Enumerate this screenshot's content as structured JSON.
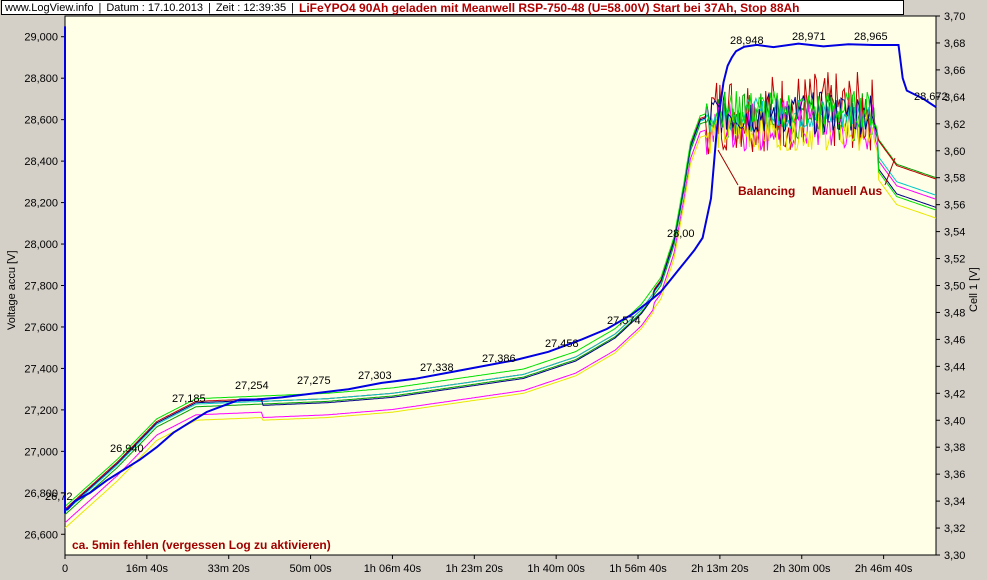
{
  "header": {
    "site": "www.LogView.info",
    "datum": "Datum : 17.10.2013",
    "zeit": "Zeit : 12:39:35",
    "title": "LiFeYPO4 90Ah geladen mit Meanwell RSP-750-48 (U=58.00V) Start bei 37Ah, Stop 88Ah"
  },
  "chart_data": {
    "type": "line",
    "ylabel_left": "Voltage accu [V]",
    "ylabel_right": "Cell 1 [V]",
    "ylim_left": [
      26.5,
      29.1
    ],
    "ylim_right": [
      3.3,
      3.7
    ],
    "y_ticks_left": [
      "26,600",
      "26,800",
      "27,000",
      "27,200",
      "27,400",
      "27,600",
      "27,800",
      "28,000",
      "28,200",
      "28,400",
      "28,600",
      "28,800",
      "29,000"
    ],
    "y_ticks_right": [
      "3,30",
      "3,32",
      "3,34",
      "3,36",
      "3,38",
      "3,40",
      "3,42",
      "3,44",
      "3,46",
      "3,48",
      "3,50",
      "3,52",
      "3,54",
      "3,56",
      "3,58",
      "3,60",
      "3,62",
      "3,64",
      "3,66",
      "3,68",
      "3,70"
    ],
    "x_ticks": [
      "0",
      "16m 40s",
      "33m 20s",
      "50m 00s",
      "1h 06m 40s",
      "1h 23m 20s",
      "1h 40m 00s",
      "1h 56m 40s",
      "2h 13m 20s",
      "2h 30m 00s",
      "2h 46m 40s"
    ],
    "x_seconds_ticks": [
      0,
      1000,
      2000,
      3000,
      4000,
      5000,
      6000,
      7000,
      8000,
      9000,
      10000
    ],
    "x_max_seconds": 10500,
    "voltage_series": {
      "name": "Voltage accu",
      "color": "#0000e0",
      "x": [
        0,
        30,
        120,
        300,
        500,
        700,
        900,
        1100,
        1300,
        1500,
        1700,
        1900,
        2100,
        2300,
        2600,
        3000,
        3400,
        3800,
        4200,
        4600,
        5000,
        5400,
        5800,
        6200,
        6500,
        6800,
        7000,
        7150,
        7250,
        7350,
        7450,
        7550,
        7650,
        7750,
        7820,
        7900,
        7950,
        8000,
        8050,
        8150,
        8300,
        8500,
        8800,
        9100,
        9400,
        9700,
        10000,
        10050,
        10100,
        10300,
        10450
      ],
      "y": [
        26.72,
        26.72,
        26.76,
        26.8,
        26.86,
        26.91,
        26.96,
        27.02,
        27.09,
        27.14,
        27.19,
        27.22,
        27.25,
        27.25,
        27.26,
        27.28,
        27.3,
        27.33,
        27.35,
        27.38,
        27.41,
        27.44,
        27.48,
        27.54,
        27.59,
        27.66,
        27.72,
        27.77,
        27.82,
        27.87,
        27.92,
        27.97,
        28.03,
        28.22,
        28.55,
        28.78,
        28.86,
        28.9,
        28.93,
        28.95,
        28.96,
        28.95,
        28.97,
        28.96,
        28.96,
        28.96,
        28.96,
        28.8,
        28.74,
        28.7,
        28.66
      ]
    },
    "voltage_labels": [
      {
        "x": 0,
        "y": 26.72,
        "text": "26,72"
      },
      {
        "x": 900,
        "y": 26.94,
        "text": "26,940"
      },
      {
        "x": 1900,
        "y": 27.22,
        "text": "27,185"
      },
      {
        "x": 2900,
        "y": 27.27,
        "text": "27,254"
      },
      {
        "x": 3800,
        "y": 27.28,
        "text": "27,275"
      },
      {
        "x": 4800,
        "y": 27.33,
        "text": "27,303"
      },
      {
        "x": 5700,
        "y": 27.36,
        "text": "27,338"
      },
      {
        "x": 6600,
        "y": 27.41,
        "text": "27,386"
      },
      {
        "x": 7600,
        "y": 27.48,
        "text": "27,458"
      },
      {
        "x": 8500,
        "y": 27.59,
        "text": "27,574"
      },
      {
        "x": 9450,
        "y": 28.01,
        "text": "28,00"
      },
      {
        "x": 10300,
        "y": 28.95,
        "text": "28,948"
      },
      {
        "x": 11200,
        "y": 28.96,
        "text": "28,971"
      },
      {
        "x": 12100,
        "y": 28.96,
        "text": "28,965"
      },
      {
        "x": 12950,
        "y": 28.7,
        "text": "28,672"
      }
    ],
    "cell_series": [
      {
        "color": "#00a000"
      },
      {
        "color": "#c00000"
      },
      {
        "color": "#ff00ff"
      },
      {
        "color": "#00c8c8"
      },
      {
        "color": "#e8e800"
      },
      {
        "color": "#000080"
      },
      {
        "color": "#00e000"
      }
    ],
    "annotations": [
      {
        "text": "Balancing",
        "x_anchor": "balancing"
      },
      {
        "text": "Manuell Aus",
        "x_anchor": "manuell"
      },
      {
        "text": "ca. 5min fehlen (vergessen Log zu aktivieren)",
        "x_anchor": "note"
      }
    ]
  }
}
